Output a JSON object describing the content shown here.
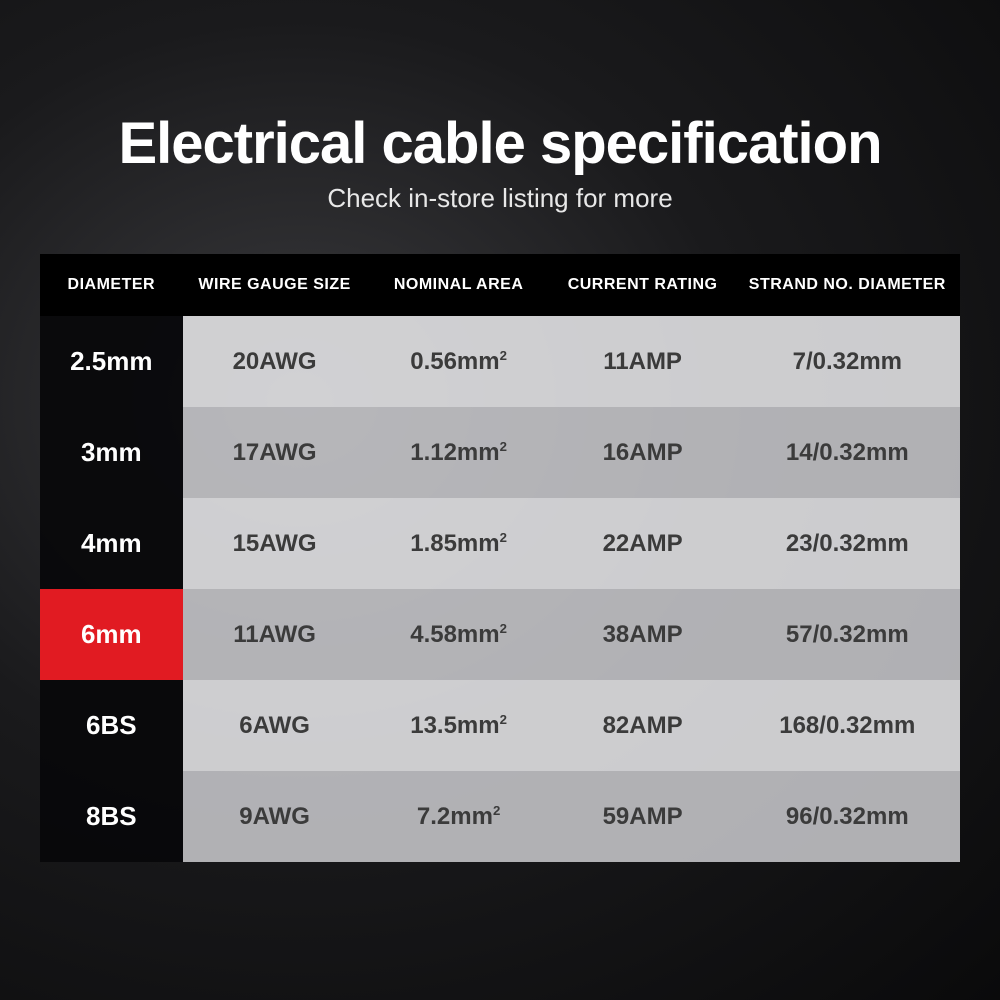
{
  "header": {
    "title": "Electrical cable specification",
    "subtitle": "Check in-store listing for more"
  },
  "table": {
    "type": "table",
    "columns": [
      "DIAMETER",
      "WIRE GAUGE SIZE",
      "NOMINAL AREA",
      "CURRENT RATING",
      "STRAND NO. DIAMETER"
    ],
    "column_widths_pct": [
      15.5,
      20,
      20,
      20,
      24.5
    ],
    "rows": [
      {
        "diameter": "2.5mm",
        "gauge": "20AWG",
        "area_val": "0.56mm",
        "area_sup": "2",
        "current": "11AMP",
        "strand": "7/0.32mm",
        "highlight": false
      },
      {
        "diameter": "3mm",
        "gauge": "17AWG",
        "area_val": "1.12mm",
        "area_sup": "2",
        "current": "16AMP",
        "strand": "14/0.32mm",
        "highlight": false
      },
      {
        "diameter": "4mm",
        "gauge": "15AWG",
        "area_val": "1.85mm",
        "area_sup": "2",
        "current": "22AMP",
        "strand": "23/0.32mm",
        "highlight": false
      },
      {
        "diameter": "6mm",
        "gauge": "11AWG",
        "area_val": "4.58mm",
        "area_sup": "2",
        "current": "38AMP",
        "strand": "57/0.32mm",
        "highlight": true
      },
      {
        "diameter": "6BS",
        "gauge": "6AWG",
        "area_val": "13.5mm",
        "area_sup": "2",
        "current": "82AMP",
        "strand": "168/0.32mm",
        "highlight": false
      },
      {
        "diameter": "8BS",
        "gauge": "9AWG",
        "area_val": "7.2mm",
        "area_sup": "2",
        "current": "59AMP",
        "strand": "96/0.32mm",
        "highlight": false
      }
    ],
    "styles": {
      "header_bg": "#000000",
      "header_text": "#ffffff",
      "header_fontsize": 16,
      "body_fontsize": 24,
      "first_col_bg": "rgba(8,8,10,0.92)",
      "first_col_text": "#ffffff",
      "odd_row_bg": "rgba(230,230,232,0.88)",
      "even_row_bg": "rgba(205,205,208,0.85)",
      "body_text_color": "#3b3b3b",
      "highlight_bg": "#e11b22",
      "highlight_text": "#ffffff"
    }
  },
  "page": {
    "title_fontsize": 58,
    "subtitle_fontsize": 26,
    "title_color": "#ffffff",
    "subtitle_color": "#e8e8e8",
    "background": "radial-gradient(ellipse at 30% 40%, #3a3a3d 0%, #1a1a1c 45%, #0a0a0b 100%)"
  }
}
